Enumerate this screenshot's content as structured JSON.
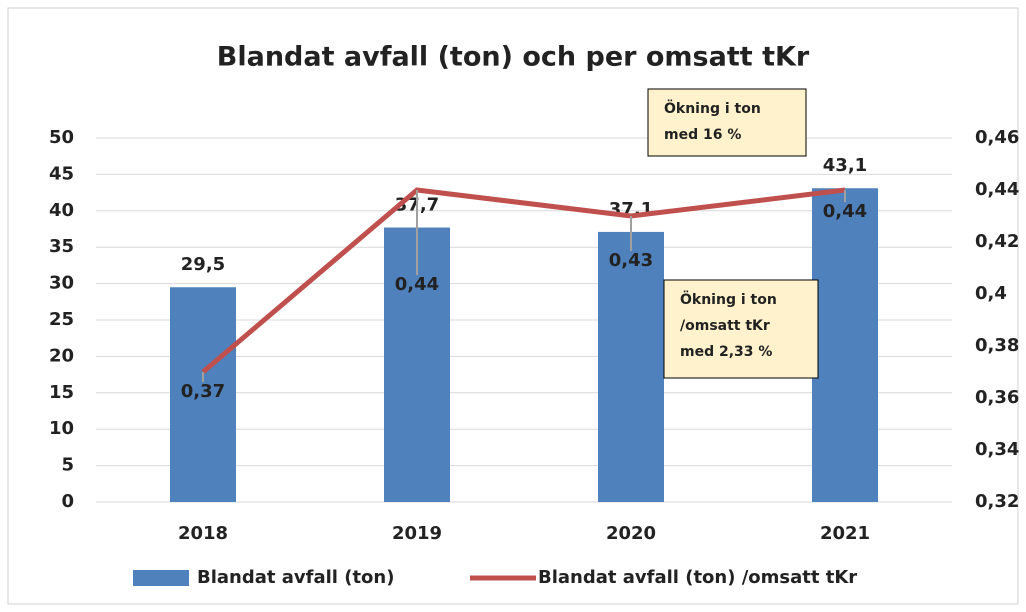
{
  "chart_data": {
    "type": "combo",
    "title": "Blandat avfall (ton) och per omsatt tKr",
    "categories": [
      "2018",
      "2019",
      "2020",
      "2021"
    ],
    "series": [
      {
        "name": "Blandat avfall (ton)",
        "type": "bar",
        "color": "#4f81bd",
        "values": [
          29.5,
          37.7,
          37.1,
          43.1
        ],
        "value_labels": [
          "29,5",
          "37,7",
          "37,1",
          "43,1"
        ]
      },
      {
        "name": "Blandat avfall (ton) /omsatt tKr",
        "type": "line",
        "axis": "y2",
        "color": "#c0504d",
        "values": [
          0.37,
          0.44,
          0.43,
          0.44
        ],
        "value_labels": [
          "0,37",
          "0,44",
          "0,43",
          "0,44"
        ]
      }
    ],
    "ylim": [
      0,
      50
    ],
    "yticks": [
      0,
      5,
      10,
      15,
      20,
      25,
      30,
      35,
      40,
      45,
      50
    ],
    "y2lim": [
      0.32,
      0.46
    ],
    "y2ticks": [
      {
        "value": 0.32,
        "label": "0,32"
      },
      {
        "value": 0.34,
        "label": "0,34"
      },
      {
        "value": 0.36,
        "label": "0,36"
      },
      {
        "value": 0.38,
        "label": "0,38"
      },
      {
        "value": 0.4,
        "label": "0,4"
      },
      {
        "value": 0.42,
        "label": "0,42"
      },
      {
        "value": 0.44,
        "label": "0,44"
      },
      {
        "value": 0.46,
        "label": "0,46"
      }
    ],
    "grid": true,
    "legend": "bottom",
    "annotations": [
      {
        "lines": [
          "Ökning i ton",
          "med 16 %"
        ]
      },
      {
        "lines": [
          "Ökning i ton",
          "/omsatt tKr",
          "med 2,33 %"
        ]
      }
    ]
  }
}
